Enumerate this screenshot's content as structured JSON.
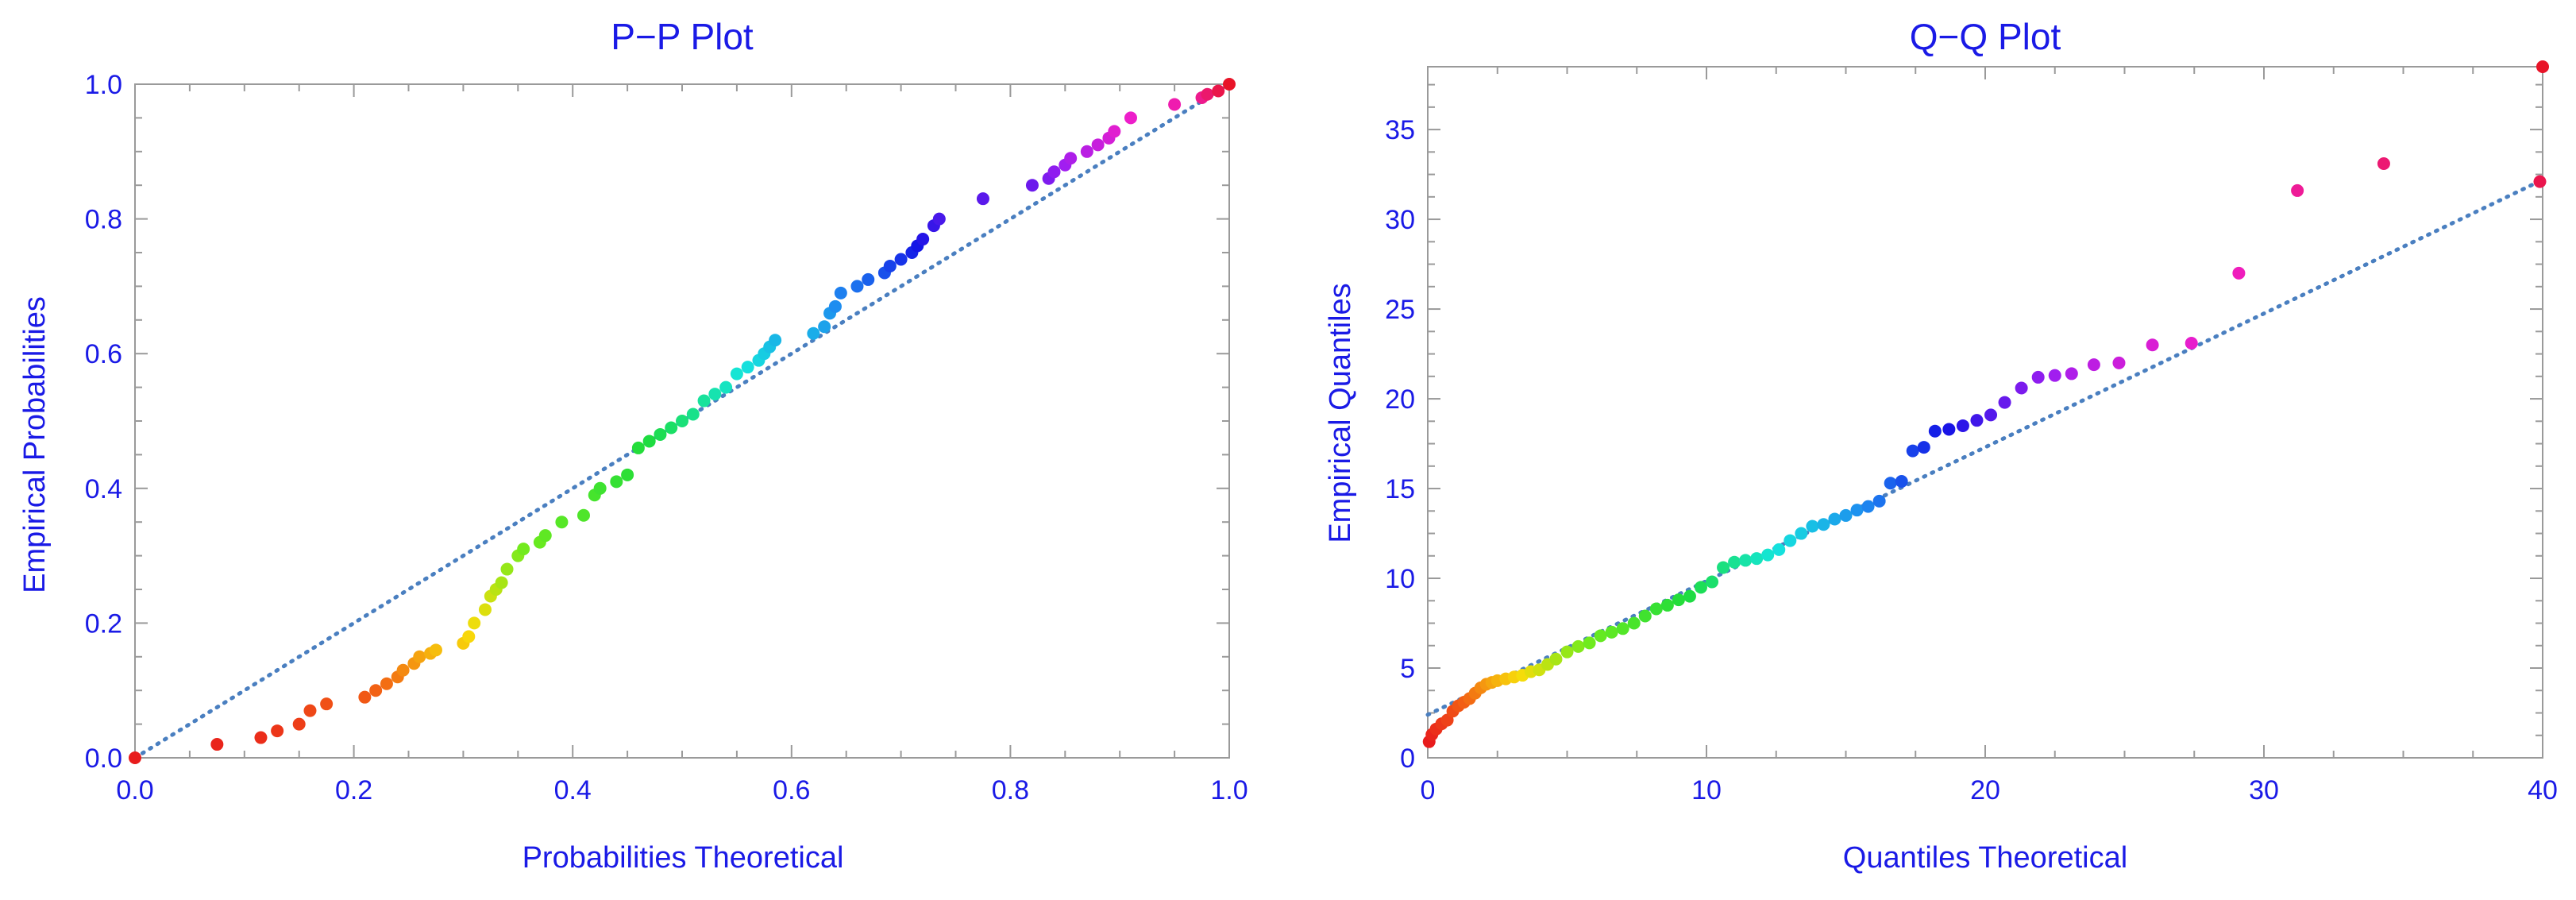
{
  "chart_data": [
    {
      "type": "scatter",
      "title": "P−P Plot",
      "xlabel": "Probabilities Theoretical",
      "ylabel": "Empirical Probabilities",
      "xlim": [
        0,
        1
      ],
      "ylim": [
        0,
        1
      ],
      "x_ticks": [
        "0.0",
        "0.2",
        "0.4",
        "0.6",
        "0.8",
        "1.0"
      ],
      "y_ticks": [
        "0.0",
        "0.2",
        "0.4",
        "0.6",
        "0.8",
        "1.0"
      ],
      "reference_line": {
        "style": "dotted",
        "color": "#4a7fc0",
        "from": [
          0,
          0
        ],
        "to": [
          1,
          1
        ]
      },
      "grid": false,
      "points": {
        "x": [
          0.0,
          0.075,
          0.115,
          0.13,
          0.15,
          0.16,
          0.175,
          0.21,
          0.22,
          0.23,
          0.24,
          0.245,
          0.255,
          0.26,
          0.27,
          0.275,
          0.3,
          0.305,
          0.31,
          0.32,
          0.325,
          0.33,
          0.335,
          0.34,
          0.35,
          0.355,
          0.37,
          0.375,
          0.39,
          0.41,
          0.42,
          0.425,
          0.44,
          0.45,
          0.46,
          0.47,
          0.48,
          0.49,
          0.5,
          0.51,
          0.52,
          0.53,
          0.54,
          0.55,
          0.56,
          0.57,
          0.575,
          0.58,
          0.585,
          0.62,
          0.63,
          0.635,
          0.64,
          0.645,
          0.66,
          0.67,
          0.685,
          0.69,
          0.7,
          0.71,
          0.715,
          0.72,
          0.73,
          0.735,
          0.775,
          0.82,
          0.835,
          0.84,
          0.85,
          0.855,
          0.87,
          0.88,
          0.89,
          0.895,
          0.91,
          0.95,
          0.975,
          0.98,
          0.99,
          1.0
        ],
        "y": [
          0.0,
          0.02,
          0.03,
          0.04,
          0.05,
          0.07,
          0.08,
          0.09,
          0.1,
          0.11,
          0.12,
          0.13,
          0.14,
          0.15,
          0.155,
          0.16,
          0.17,
          0.18,
          0.2,
          0.22,
          0.24,
          0.25,
          0.26,
          0.28,
          0.3,
          0.31,
          0.32,
          0.33,
          0.35,
          0.36,
          0.39,
          0.4,
          0.41,
          0.42,
          0.46,
          0.47,
          0.48,
          0.49,
          0.5,
          0.51,
          0.53,
          0.54,
          0.55,
          0.57,
          0.58,
          0.59,
          0.6,
          0.61,
          0.62,
          0.63,
          0.64,
          0.66,
          0.67,
          0.69,
          0.7,
          0.71,
          0.72,
          0.73,
          0.74,
          0.75,
          0.76,
          0.77,
          0.79,
          0.8,
          0.83,
          0.85,
          0.86,
          0.87,
          0.88,
          0.89,
          0.9,
          0.91,
          0.92,
          0.93,
          0.95,
          0.97,
          0.98,
          0.985,
          0.99,
          1.0
        ]
      }
    },
    {
      "type": "scatter",
      "title": "Q−Q Plot",
      "xlabel": "Quantiles Theoretical",
      "ylabel": "Empirical Quantiles",
      "xlim": [
        0,
        40
      ],
      "ylim": [
        0,
        38.5
      ],
      "x_ticks": [
        "0",
        "10",
        "20",
        "30",
        "40"
      ],
      "y_ticks": [
        "0",
        "5",
        "10",
        "15",
        "20",
        "25",
        "30",
        "35"
      ],
      "reference_line": {
        "style": "dotted",
        "color": "#4a7fc0",
        "from": [
          0,
          2.4
        ],
        "to": [
          40,
          32.2
        ]
      },
      "grid": false,
      "points": {
        "x": [
          0.05,
          0.15,
          0.3,
          0.5,
          0.7,
          0.9,
          1.1,
          1.3,
          1.5,
          1.7,
          1.9,
          2.1,
          2.3,
          2.5,
          2.8,
          3.1,
          3.4,
          3.7,
          4.0,
          4.3,
          4.6,
          5.0,
          5.4,
          5.8,
          6.2,
          6.6,
          7.0,
          7.4,
          7.8,
          8.2,
          8.6,
          9.0,
          9.4,
          9.8,
          10.2,
          10.6,
          11.0,
          11.4,
          11.8,
          12.2,
          12.6,
          13.0,
          13.4,
          13.8,
          14.2,
          14.6,
          15.0,
          15.4,
          15.8,
          16.2,
          16.6,
          17.0,
          17.4,
          17.8,
          18.2,
          18.7,
          19.2,
          19.7,
          20.2,
          20.7,
          21.3,
          21.9,
          22.5,
          23.1,
          23.9,
          24.8,
          26.0,
          27.4,
          29.1,
          31.2,
          34.3,
          39.9,
          40.0
        ],
        "y": [
          0.9,
          1.3,
          1.6,
          1.9,
          2.1,
          2.6,
          2.9,
          3.1,
          3.3,
          3.6,
          3.9,
          4.1,
          4.2,
          4.3,
          4.4,
          4.5,
          4.6,
          4.8,
          4.9,
          5.2,
          5.5,
          5.9,
          6.2,
          6.4,
          6.8,
          7.0,
          7.2,
          7.5,
          7.9,
          8.3,
          8.5,
          8.8,
          9.0,
          9.5,
          9.8,
          10.6,
          10.9,
          11.0,
          11.1,
          11.3,
          11.6,
          12.1,
          12.5,
          12.9,
          13.0,
          13.3,
          13.5,
          13.8,
          14.0,
          14.3,
          15.3,
          15.4,
          17.1,
          17.3,
          18.2,
          18.3,
          18.5,
          18.8,
          19.1,
          19.8,
          20.6,
          21.2,
          21.3,
          21.4,
          21.9,
          22.0,
          23.0,
          23.1,
          27.0,
          31.6,
          33.1,
          32.1,
          38.5
        ]
      }
    }
  ]
}
